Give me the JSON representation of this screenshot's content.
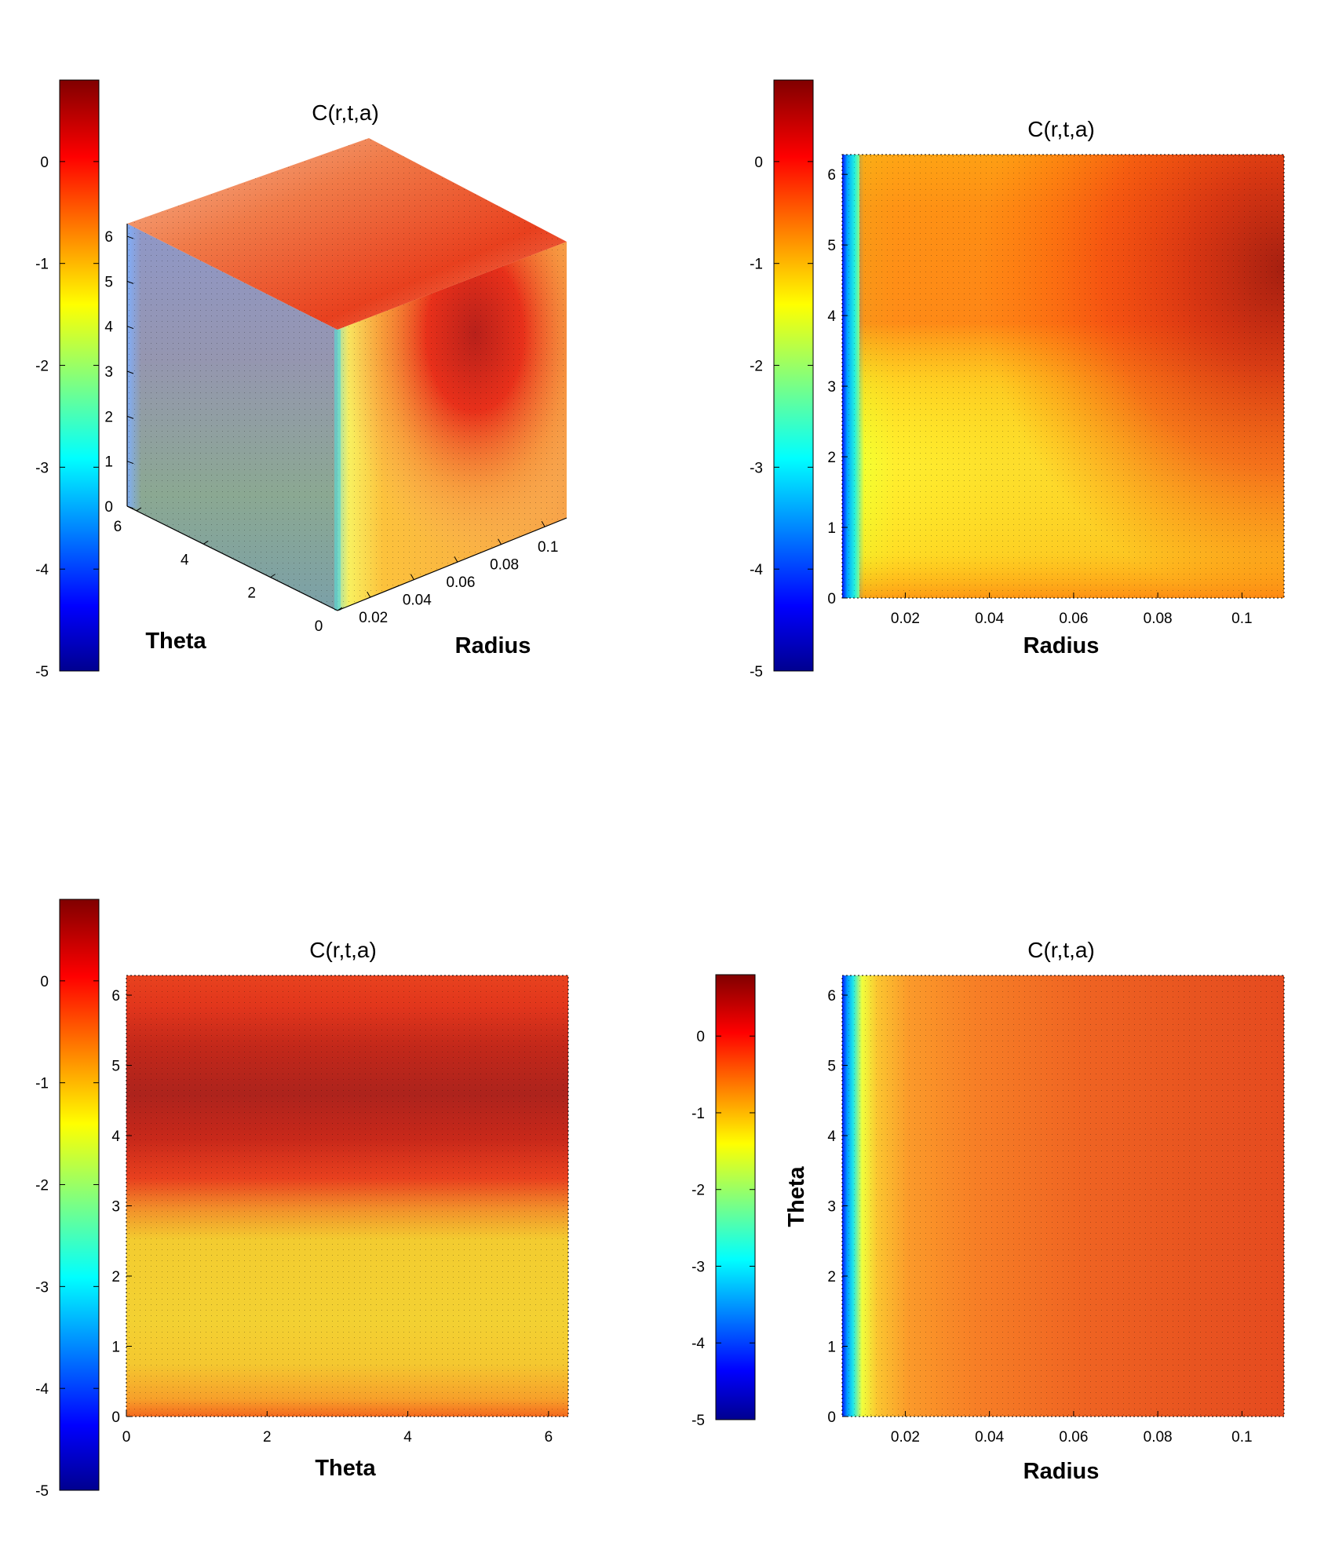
{
  "colormap": {
    "name": "jet",
    "stops": [
      "#00008f",
      "#0000ff",
      "#00ffff",
      "#ffff00",
      "#ff0000",
      "#800000"
    ]
  },
  "chart_data": [
    {
      "type": "heatmap",
      "view": "3d-slice-cube",
      "title": "C(r,t,a)",
      "xlabel": "Radius",
      "ylabel": "Theta",
      "colorbar": {
        "range": [
          -5,
          0.8
        ],
        "ticks": [
          "0",
          "-1",
          "-2",
          "-3",
          "-4",
          "-5"
        ]
      },
      "x_ticks": [
        "0.02",
        "0.04",
        "0.06",
        "0.08",
        "0.1"
      ],
      "y_ticks": [
        "0",
        "2",
        "4",
        "6"
      ],
      "z_ticks": [
        "0",
        "1",
        "2",
        "3",
        "4",
        "5",
        "6"
      ],
      "xlim": [
        0.005,
        0.11
      ],
      "ylim": [
        0,
        6.28
      ],
      "zlim": [
        0,
        6.28
      ]
    },
    {
      "type": "heatmap",
      "view": "2d",
      "title": "C(r,t,a)",
      "xlabel": "Radius",
      "ylabel": "",
      "colorbar": {
        "range": [
          -5,
          0.8
        ],
        "ticks": [
          "0",
          "-1",
          "-2",
          "-3",
          "-4",
          "-5"
        ]
      },
      "x_ticks": [
        "0.02",
        "0.04",
        "0.06",
        "0.08",
        "0.1"
      ],
      "y_ticks": [
        "0",
        "1",
        "2",
        "3",
        "4",
        "5",
        "6"
      ],
      "xlim": [
        0.005,
        0.11
      ],
      "ylim": [
        0,
        6.28
      ],
      "peak": {
        "x": 0.11,
        "y": 4.7,
        "value": 0.7
      }
    },
    {
      "type": "heatmap",
      "view": "2d",
      "title": "C(r,t,a)",
      "xlabel": "Theta",
      "ylabel": "",
      "colorbar": {
        "range": [
          -5,
          0.8
        ],
        "ticks": [
          "0",
          "-1",
          "-2",
          "-3",
          "-4",
          "-5"
        ]
      },
      "x_ticks": [
        "0",
        "2",
        "4",
        "6"
      ],
      "y_ticks": [
        "0",
        "1",
        "2",
        "3",
        "4",
        "5",
        "6"
      ],
      "xlim": [
        0,
        6.28
      ],
      "ylim": [
        0,
        6.28
      ],
      "profile_y": [
        0,
        0.3,
        0.8,
        1.5,
        2.3,
        2.9,
        3.4,
        4.0,
        4.6,
        5.3,
        6.0,
        6.28
      ],
      "profile_value": [
        -0.6,
        -1.1,
        -1.4,
        -1.5,
        -1.45,
        -1.2,
        -0.4,
        0.25,
        0.45,
        0.35,
        -0.1,
        -0.3
      ]
    },
    {
      "type": "heatmap",
      "view": "2d",
      "title": "C(r,t,a)",
      "xlabel": "Radius",
      "ylabel": "Theta",
      "colorbar": {
        "range": [
          -5,
          0.8
        ],
        "ticks": [
          "0",
          "-1",
          "-2",
          "-3",
          "-4",
          "-5"
        ]
      },
      "x_ticks": [
        "0.02",
        "0.04",
        "0.06",
        "0.08",
        "0.1"
      ],
      "y_ticks": [
        "0",
        "1",
        "2",
        "3",
        "4",
        "5",
        "6"
      ],
      "xlim": [
        0.005,
        0.11
      ],
      "ylim": [
        0,
        6.28
      ],
      "profile_x": [
        0.005,
        0.008,
        0.012,
        0.016,
        0.02,
        0.03,
        0.045,
        0.06,
        0.08,
        0.11
      ],
      "profile_value": [
        -5.0,
        -3.2,
        -2.0,
        -1.4,
        -1.15,
        -0.85,
        -0.6,
        -0.45,
        -0.35,
        -0.3
      ]
    }
  ]
}
